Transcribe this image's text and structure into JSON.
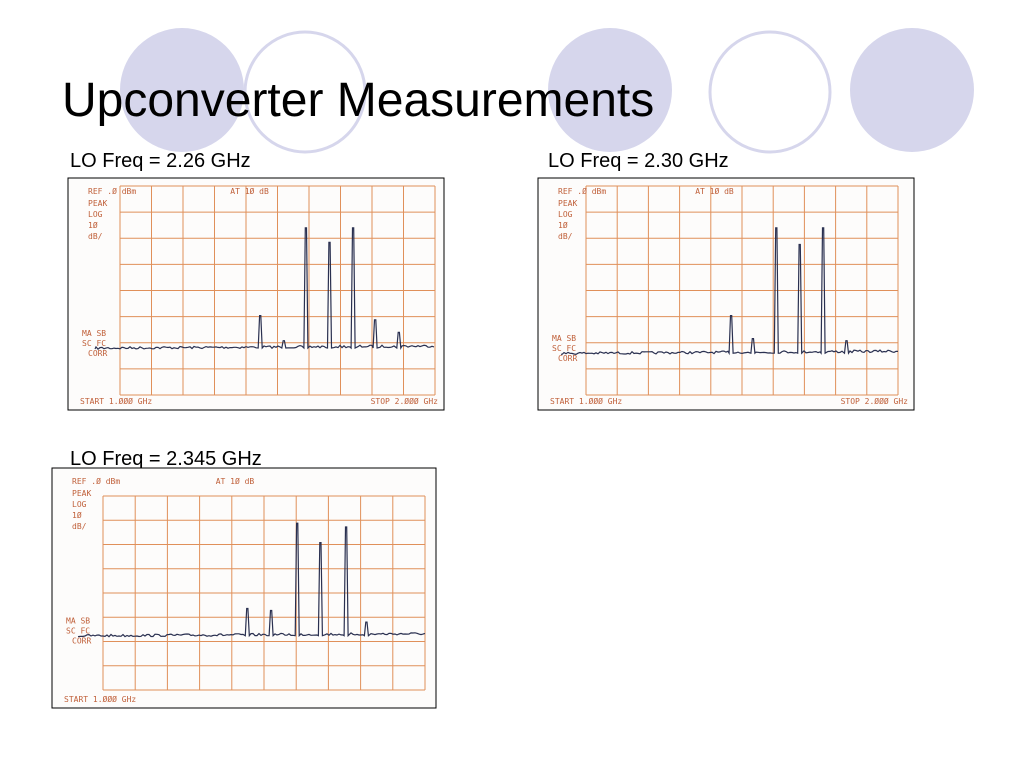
{
  "title": "Upconverter Measurements",
  "panels": [
    {
      "label": "LO Freq = 2.26 GHz",
      "ref": "REF .Ø dBm",
      "atten": "AT 1Ø dB",
      "mode": [
        "PEAK",
        "LOG",
        "1Ø",
        "dB/"
      ],
      "side": [
        "MA SB",
        "SC FC",
        "CORR"
      ],
      "start": "START 1.ØØØ GHz",
      "stop": "STOP 2.ØØØ GHz"
    },
    {
      "label": "LO Freq = 2.30 GHz",
      "ref": "REF .Ø dBm",
      "atten": "AT 1Ø dB",
      "mode": [
        "PEAK",
        "LOG",
        "1Ø",
        "dB/"
      ],
      "side": [
        "MA SB",
        "SC FC",
        "CORR"
      ],
      "start": "START 1.ØØØ GHz",
      "stop": "STOP 2.ØØØ GHz"
    },
    {
      "label": "LO Freq = 2.345 GHz",
      "ref": "REF .Ø dBm",
      "atten": "AT 1Ø dB",
      "mode": [
        "PEAK",
        "LOG",
        "1Ø",
        "dB/"
      ],
      "side": [
        "MA SB",
        "SC FC",
        "CORR"
      ],
      "start": "START 1.ØØØ GHz"
    }
  ]
}
